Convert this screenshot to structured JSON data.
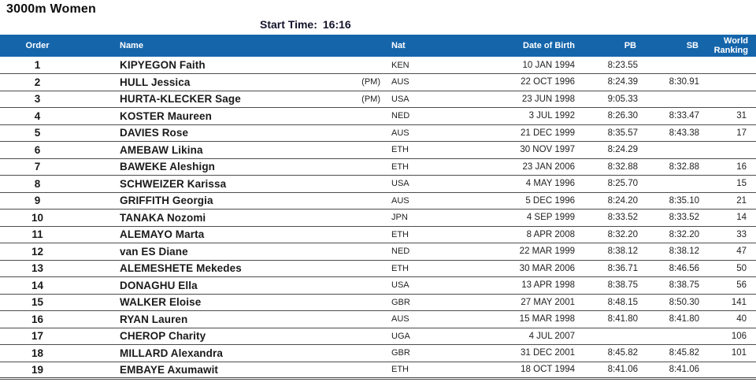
{
  "page": {
    "title": "3000m Women",
    "start_time_label": "Start Time:",
    "start_time_value": "16:16"
  },
  "colors": {
    "header_bg": "#1565ab",
    "header_text": "#ffffff",
    "row_separator": "#4d4d4d",
    "text": "#1a1a1a"
  },
  "table": {
    "headers": {
      "order": "Order",
      "name": "Name",
      "nat": "Nat",
      "dob": "Date of Birth",
      "pb": "PB",
      "sb": "SB",
      "wr": "World Ranking"
    },
    "rows": [
      {
        "order": "1",
        "name": "KIPYEGON Faith",
        "pm": "",
        "nat": "KEN",
        "dob": "10 JAN 1994",
        "pb": "8:23.55",
        "sb": "",
        "wr": ""
      },
      {
        "order": "2",
        "name": "HULL Jessica",
        "pm": "(PM)",
        "nat": "AUS",
        "dob": "22 OCT 1996",
        "pb": "8:24.39",
        "sb": "8:30.91",
        "wr": ""
      },
      {
        "order": "3",
        "name": "HURTA-KLECKER Sage",
        "pm": "(PM)",
        "nat": "USA",
        "dob": "23 JUN 1998",
        "pb": "9:05.33",
        "sb": "",
        "wr": ""
      },
      {
        "order": "4",
        "name": "KOSTER Maureen",
        "pm": "",
        "nat": "NED",
        "dob": "3 JUL 1992",
        "pb": "8:26.30",
        "sb": "8:33.47",
        "wr": "31"
      },
      {
        "order": "5",
        "name": "DAVIES Rose",
        "pm": "",
        "nat": "AUS",
        "dob": "21 DEC 1999",
        "pb": "8:35.57",
        "sb": "8:43.38",
        "wr": "17"
      },
      {
        "order": "6",
        "name": "AMEBAW Likina",
        "pm": "",
        "nat": "ETH",
        "dob": "30 NOV 1997",
        "pb": "8:24.29",
        "sb": "",
        "wr": ""
      },
      {
        "order": "7",
        "name": "BAWEKE Aleshign",
        "pm": "",
        "nat": "ETH",
        "dob": "23 JAN 2006",
        "pb": "8:32.88",
        "sb": "8:32.88",
        "wr": "16"
      },
      {
        "order": "8",
        "name": "SCHWEIZER Karissa",
        "pm": "",
        "nat": "USA",
        "dob": "4 MAY 1996",
        "pb": "8:25.70",
        "sb": "",
        "wr": "15"
      },
      {
        "order": "9",
        "name": "GRIFFITH Georgia",
        "pm": "",
        "nat": "AUS",
        "dob": "5 DEC 1996",
        "pb": "8:24.20",
        "sb": "8:35.10",
        "wr": "21"
      },
      {
        "order": "10",
        "name": "TANAKA Nozomi",
        "pm": "",
        "nat": "JPN",
        "dob": "4 SEP 1999",
        "pb": "8:33.52",
        "sb": "8:33.52",
        "wr": "14"
      },
      {
        "order": "11",
        "name": "ALEMAYO Marta",
        "pm": "",
        "nat": "ETH",
        "dob": "8 APR 2008",
        "pb": "8:32.20",
        "sb": "8:32.20",
        "wr": "33"
      },
      {
        "order": "12",
        "name": "van ES Diane",
        "pm": "",
        "nat": "NED",
        "dob": "22 MAR 1999",
        "pb": "8:38.12",
        "sb": "8:38.12",
        "wr": "47"
      },
      {
        "order": "13",
        "name": "ALEMESHETE Mekedes",
        "pm": "",
        "nat": "ETH",
        "dob": "30 MAR 2006",
        "pb": "8:36.71",
        "sb": "8:46.56",
        "wr": "50"
      },
      {
        "order": "14",
        "name": "DONAGHU Ella",
        "pm": "",
        "nat": "USA",
        "dob": "13 APR 1998",
        "pb": "8:38.75",
        "sb": "8:38.75",
        "wr": "56"
      },
      {
        "order": "15",
        "name": "WALKER Eloise",
        "pm": "",
        "nat": "GBR",
        "dob": "27 MAY 2001",
        "pb": "8:48.15",
        "sb": "8:50.30",
        "wr": "141"
      },
      {
        "order": "16",
        "name": "RYAN Lauren",
        "pm": "",
        "nat": "AUS",
        "dob": "15 MAR 1998",
        "pb": "8:41.80",
        "sb": "8:41.80",
        "wr": "40"
      },
      {
        "order": "17",
        "name": "CHEROP Charity",
        "pm": "",
        "nat": "UGA",
        "dob": "4 JUL 2007",
        "pb": "",
        "sb": "",
        "wr": "106"
      },
      {
        "order": "18",
        "name": "MILLARD Alexandra",
        "pm": "",
        "nat": "GBR",
        "dob": "31 DEC 2001",
        "pb": "8:45.82",
        "sb": "8:45.82",
        "wr": "101"
      },
      {
        "order": "19",
        "name": "EMBAYE Axumawit",
        "pm": "",
        "nat": "ETH",
        "dob": "18 OCT 1994",
        "pb": "8:41.06",
        "sb": "8:41.06",
        "wr": ""
      }
    ]
  }
}
